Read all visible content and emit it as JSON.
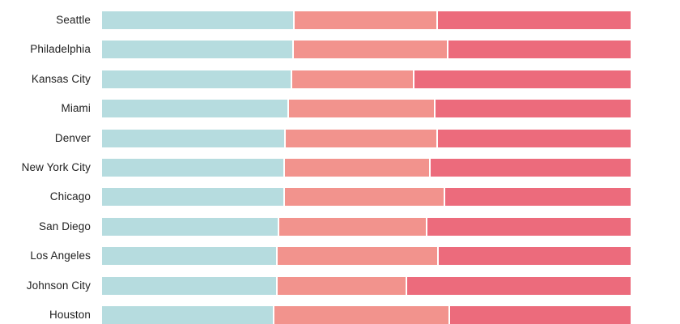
{
  "colors": {
    "background": "#ffffff",
    "label_text": "#212121",
    "segment_gap": "#ffffff",
    "series_1": "#b6dcdf",
    "series_2": "#f2938d",
    "series_3": "#ec6b7c"
  },
  "chart_data": {
    "type": "bar",
    "orientation": "horizontal",
    "stacked": true,
    "title": "",
    "xlabel": "",
    "ylabel": "",
    "xlim": [
      0,
      100
    ],
    "legend": "none",
    "axes_visible": false,
    "grid": false,
    "categories": [
      "Seattle",
      "Philadelphia",
      "Kansas City",
      "Miami",
      "Denver",
      "New York City",
      "Chicago",
      "San Diego",
      "Los Angeles",
      "Johnson City",
      "Houston"
    ],
    "series": [
      {
        "name": "",
        "color": "#b6dcdf",
        "values": [
          36.1,
          36.0,
          35.7,
          35.1,
          34.4,
          34.3,
          34.3,
          33.2,
          33.0,
          33.0,
          32.3
        ]
      },
      {
        "name": "",
        "color": "#f2938d",
        "values": [
          27.1,
          29.3,
          23.1,
          27.7,
          28.9,
          27.6,
          30.3,
          28.1,
          30.4,
          24.5,
          33.3
        ]
      },
      {
        "name": "",
        "color": "#ec6b7c",
        "values": [
          36.8,
          34.7,
          41.2,
          37.2,
          36.7,
          38.1,
          35.4,
          38.7,
          36.6,
          42.5,
          34.4
        ]
      }
    ]
  }
}
